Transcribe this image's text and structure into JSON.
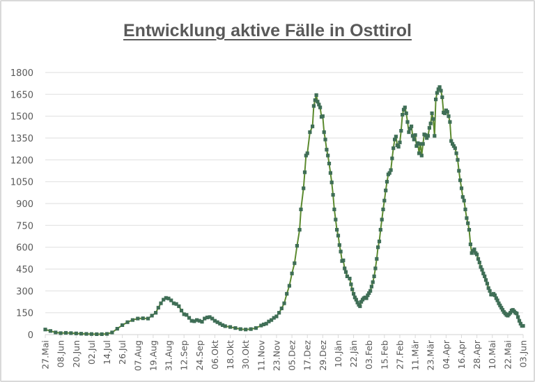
{
  "chart_data": {
    "type": "line",
    "title": "Entwicklung aktive Fälle in Osttirol",
    "xlabel": "",
    "ylabel": "",
    "ylim": [
      0,
      1800
    ],
    "yticks": [
      0,
      150,
      300,
      450,
      600,
      750,
      900,
      1050,
      1200,
      1350,
      1500,
      1650,
      1800
    ],
    "grid": true,
    "legend": null,
    "x_tick_labels": [
      "27.Mai",
      "08.Jun",
      "20.Jun",
      "02.Jul",
      "14.Jul",
      "26.Jul",
      "07.Aug",
      "19.Aug",
      "31.Aug",
      "12.Sep",
      "24.Sep",
      "06.Okt",
      "18.Okt",
      "30.Okt",
      "11.Nov",
      "23.Nov",
      "05.Dez",
      "17.Dez",
      "29.Dez",
      "10.Jän",
      "22.Jän",
      "03.Feb",
      "15.Feb",
      "27.Feb",
      "11.Mär",
      "23.Mär",
      "04.Apr",
      "16.Apr",
      "28.Apr",
      "10.Mai",
      "22.Mai",
      "03.Jun"
    ],
    "x_range_days": 372,
    "series": [
      {
        "name": "aktive Fälle",
        "line_color": "#5b8a2e",
        "marker_color": "#3f6e56",
        "points_day_value": [
          [
            0,
            35
          ],
          [
            4,
            25
          ],
          [
            8,
            15
          ],
          [
            12,
            10
          ],
          [
            16,
            12
          ],
          [
            20,
            10
          ],
          [
            24,
            8
          ],
          [
            28,
            6
          ],
          [
            32,
            5
          ],
          [
            36,
            4
          ],
          [
            40,
            3
          ],
          [
            44,
            3
          ],
          [
            48,
            5
          ],
          [
            52,
            15
          ],
          [
            56,
            40
          ],
          [
            60,
            65
          ],
          [
            64,
            85
          ],
          [
            68,
            100
          ],
          [
            72,
            110
          ],
          [
            76,
            112
          ],
          [
            80,
            110
          ],
          [
            83,
            130
          ],
          [
            86,
            150
          ],
          [
            88,
            185
          ],
          [
            90,
            215
          ],
          [
            92,
            240
          ],
          [
            94,
            252
          ],
          [
            96,
            248
          ],
          [
            98,
            235
          ],
          [
            100,
            215
          ],
          [
            102,
            210
          ],
          [
            104,
            195
          ],
          [
            106,
            165
          ],
          [
            108,
            140
          ],
          [
            110,
            135
          ],
          [
            112,
            115
          ],
          [
            114,
            95
          ],
          [
            116,
            92
          ],
          [
            118,
            100
          ],
          [
            120,
            95
          ],
          [
            122,
            88
          ],
          [
            124,
            110
          ],
          [
            126,
            118
          ],
          [
            128,
            120
          ],
          [
            130,
            110
          ],
          [
            132,
            95
          ],
          [
            134,
            85
          ],
          [
            136,
            75
          ],
          [
            138,
            65
          ],
          [
            140,
            58
          ],
          [
            144,
            52
          ],
          [
            148,
            45
          ],
          [
            152,
            38
          ],
          [
            156,
            35
          ],
          [
            160,
            38
          ],
          [
            164,
            45
          ],
          [
            168,
            62
          ],
          [
            170,
            70
          ],
          [
            172,
            75
          ],
          [
            174,
            90
          ],
          [
            176,
            100
          ],
          [
            178,
            115
          ],
          [
            180,
            125
          ],
          [
            182,
            150
          ],
          [
            184,
            180
          ],
          [
            186,
            215
          ],
          [
            188,
            280
          ],
          [
            190,
            335
          ],
          [
            192,
            420
          ],
          [
            194,
            490
          ],
          [
            196,
            610
          ],
          [
            198,
            720
          ],
          [
            199,
            860
          ],
          [
            201,
            1005
          ],
          [
            202,
            1115
          ],
          [
            203,
            1230
          ],
          [
            204,
            1245
          ],
          [
            206,
            1390
          ],
          [
            208,
            1430
          ],
          [
            209,
            1570
          ],
          [
            210,
            1610
          ],
          [
            211,
            1645
          ],
          [
            212,
            1600
          ],
          [
            213,
            1580
          ],
          [
            214,
            1560
          ],
          [
            215,
            1495
          ],
          [
            216,
            1500
          ],
          [
            217,
            1390
          ],
          [
            218,
            1340
          ],
          [
            219,
            1270
          ],
          [
            220,
            1230
          ],
          [
            221,
            1175
          ],
          [
            222,
            1110
          ],
          [
            223,
            1045
          ],
          [
            224,
            960
          ],
          [
            225,
            860
          ],
          [
            226,
            790
          ],
          [
            227,
            720
          ],
          [
            228,
            680
          ],
          [
            229,
            615
          ],
          [
            230,
            570
          ],
          [
            231,
            505
          ],
          [
            232,
            510
          ],
          [
            233,
            455
          ],
          [
            234,
            430
          ],
          [
            235,
            400
          ],
          [
            237,
            385
          ],
          [
            238,
            345
          ],
          [
            239,
            310
          ],
          [
            240,
            280
          ],
          [
            241,
            255
          ],
          [
            242,
            240
          ],
          [
            243,
            220
          ],
          [
            244,
            205
          ],
          [
            245,
            195
          ],
          [
            246,
            225
          ],
          [
            247,
            240
          ],
          [
            248,
            250
          ],
          [
            249,
            255
          ],
          [
            250,
            250
          ],
          [
            251,
            270
          ],
          [
            252,
            285
          ],
          [
            253,
            300
          ],
          [
            254,
            330
          ],
          [
            255,
            360
          ],
          [
            256,
            400
          ],
          [
            257,
            455
          ],
          [
            258,
            520
          ],
          [
            259,
            600
          ],
          [
            260,
            640
          ],
          [
            261,
            720
          ],
          [
            262,
            790
          ],
          [
            263,
            860
          ],
          [
            264,
            920
          ],
          [
            265,
            990
          ],
          [
            266,
            1050
          ],
          [
            267,
            1100
          ],
          [
            268,
            1110
          ],
          [
            269,
            1130
          ],
          [
            270,
            1210
          ],
          [
            271,
            1280
          ],
          [
            272,
            1340
          ],
          [
            273,
            1360
          ],
          [
            274,
            1300
          ],
          [
            275,
            1290
          ],
          [
            276,
            1320
          ],
          [
            277,
            1400
          ],
          [
            278,
            1510
          ],
          [
            279,
            1545
          ],
          [
            280,
            1560
          ],
          [
            281,
            1520
          ],
          [
            282,
            1460
          ],
          [
            283,
            1390
          ],
          [
            284,
            1415
          ],
          [
            285,
            1430
          ],
          [
            286,
            1365
          ],
          [
            287,
            1340
          ],
          [
            288,
            1370
          ],
          [
            289,
            1295
          ],
          [
            290,
            1315
          ],
          [
            291,
            1245
          ],
          [
            292,
            1310
          ],
          [
            293,
            1230
          ],
          [
            294,
            1310
          ],
          [
            295,
            1375
          ],
          [
            296,
            1370
          ],
          [
            297,
            1350
          ],
          [
            298,
            1365
          ],
          [
            299,
            1420
          ],
          [
            300,
            1450
          ],
          [
            301,
            1520
          ],
          [
            302,
            1480
          ],
          [
            303,
            1365
          ],
          [
            304,
            1615
          ],
          [
            305,
            1660
          ],
          [
            306,
            1685
          ],
          [
            307,
            1700
          ],
          [
            308,
            1675
          ],
          [
            309,
            1630
          ],
          [
            310,
            1525
          ],
          [
            311,
            1520
          ],
          [
            312,
            1540
          ],
          [
            313,
            1530
          ],
          [
            314,
            1500
          ],
          [
            315,
            1460
          ],
          [
            316,
            1330
          ],
          [
            317,
            1310
          ],
          [
            318,
            1295
          ],
          [
            319,
            1280
          ],
          [
            320,
            1245
          ],
          [
            321,
            1200
          ],
          [
            322,
            1125
          ],
          [
            323,
            1060
          ],
          [
            324,
            1005
          ],
          [
            325,
            945
          ],
          [
            326,
            920
          ],
          [
            327,
            860
          ],
          [
            328,
            800
          ],
          [
            329,
            765
          ],
          [
            330,
            720
          ],
          [
            331,
            620
          ],
          [
            332,
            560
          ],
          [
            333,
            575
          ],
          [
            334,
            585
          ],
          [
            335,
            560
          ],
          [
            336,
            550
          ],
          [
            337,
            520
          ],
          [
            338,
            495
          ],
          [
            339,
            465
          ],
          [
            340,
            445
          ],
          [
            341,
            420
          ],
          [
            342,
            400
          ],
          [
            343,
            375
          ],
          [
            344,
            350
          ],
          [
            345,
            320
          ],
          [
            346,
            300
          ],
          [
            347,
            275
          ],
          [
            348,
            275
          ],
          [
            349,
            280
          ],
          [
            350,
            270
          ],
          [
            351,
            250
          ],
          [
            352,
            235
          ],
          [
            353,
            215
          ],
          [
            354,
            200
          ],
          [
            355,
            185
          ],
          [
            356,
            170
          ],
          [
            357,
            155
          ],
          [
            358,
            145
          ],
          [
            359,
            135
          ],
          [
            360,
            130
          ],
          [
            361,
            140
          ],
          [
            362,
            150
          ],
          [
            363,
            165
          ],
          [
            364,
            170
          ],
          [
            365,
            160
          ],
          [
            366,
            150
          ],
          [
            367,
            145
          ],
          [
            368,
            120
          ],
          [
            369,
            95
          ],
          [
            370,
            75
          ],
          [
            371,
            60
          ],
          [
            372,
            60
          ]
        ]
      }
    ]
  }
}
